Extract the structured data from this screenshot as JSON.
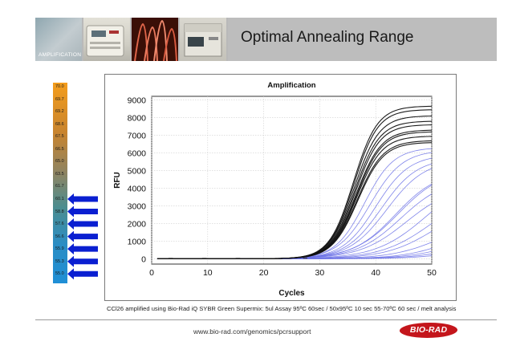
{
  "header": {
    "section_label": "AMPLIFICATION",
    "title": "Optimal Annealing Range"
  },
  "temperature_scale": {
    "labels": [
      "70.0",
      "69.7",
      "69.2",
      "68.6",
      "67.5",
      "66.5",
      "65.0",
      "63.5",
      "61.7",
      "60.1",
      "58.8",
      "57.6",
      "56.6",
      "55.9",
      "55.3",
      "55.0"
    ],
    "highlighted": [
      "60.1",
      "58.8",
      "57.6",
      "56.6",
      "55.9",
      "55.3",
      "55.0"
    ],
    "arrow_color": "#0a1fd1"
  },
  "chart_data": {
    "type": "line",
    "title": "Amplification",
    "xlabel": "Cycles",
    "ylabel": "RFU",
    "xlim": [
      0,
      50
    ],
    "ylim": [
      -300,
      9200
    ],
    "x_ticks": [
      0,
      10,
      20,
      30,
      40,
      50
    ],
    "y_ticks": [
      0,
      1000,
      2000,
      3000,
      4000,
      5000,
      6000,
      7000,
      8000,
      9000
    ],
    "grid": true,
    "series_colors": {
      "black": "#111111",
      "blue": "#6a70e6"
    },
    "series": [
      {
        "color": "black",
        "plateau": 8650,
        "midpoint": 36.0,
        "slope": 2.15
      },
      {
        "color": "black",
        "plateau": 8450,
        "midpoint": 36.1,
        "slope": 2.15
      },
      {
        "color": "black",
        "plateau": 8100,
        "midpoint": 36.2,
        "slope": 2.2
      },
      {
        "color": "black",
        "plateau": 7800,
        "midpoint": 36.3,
        "slope": 2.2
      },
      {
        "color": "black",
        "plateau": 7600,
        "midpoint": 36.4,
        "slope": 2.2
      },
      {
        "color": "black",
        "plateau": 7300,
        "midpoint": 36.5,
        "slope": 2.25
      },
      {
        "color": "black",
        "plateau": 7200,
        "midpoint": 36.6,
        "slope": 2.25
      },
      {
        "color": "black",
        "plateau": 6950,
        "midpoint": 36.6,
        "slope": 2.25
      },
      {
        "color": "black",
        "plateau": 6700,
        "midpoint": 36.7,
        "slope": 2.3
      },
      {
        "color": "black",
        "plateau": 6600,
        "midpoint": 36.8,
        "slope": 2.3
      },
      {
        "color": "blue",
        "plateau": 6300,
        "midpoint": 38.0,
        "slope": 2.6
      },
      {
        "color": "blue",
        "plateau": 6150,
        "midpoint": 39.0,
        "slope": 2.9
      },
      {
        "color": "blue",
        "plateau": 5900,
        "midpoint": 40.0,
        "slope": 3.0
      },
      {
        "color": "blue",
        "plateau": 5700,
        "midpoint": 41.0,
        "slope": 3.2
      },
      {
        "color": "blue",
        "plateau": 5600,
        "midpoint": 42.0,
        "slope": 3.4
      },
      {
        "color": "blue",
        "plateau": 5000,
        "midpoint": 43.5,
        "slope": 3.8
      },
      {
        "color": "blue",
        "plateau": 5100,
        "midpoint": 44.0,
        "slope": 4.0
      },
      {
        "color": "blue",
        "plateau": 4600,
        "midpoint": 44.5,
        "slope": 4.0
      },
      {
        "color": "blue",
        "plateau": 4200,
        "midpoint": 45.5,
        "slope": 4.2
      },
      {
        "color": "blue",
        "plateau": 4800,
        "midpoint": 49.0,
        "slope": 4.5
      },
      {
        "color": "blue",
        "plateau": 4000,
        "midpoint": 50.0,
        "slope": 4.5
      },
      {
        "color": "blue",
        "plateau": 3500,
        "midpoint": 51.0,
        "slope": 4.5
      },
      {
        "color": "blue",
        "plateau": 2400,
        "midpoint": 52.0,
        "slope": 4.5
      },
      {
        "color": "blue",
        "plateau": 2400,
        "midpoint": 55.0,
        "slope": 4.5
      },
      {
        "color": "blue",
        "plateau": 2000,
        "midpoint": 56.0,
        "slope": 4.5
      },
      {
        "color": "blue",
        "plateau": 1600,
        "midpoint": 57.0,
        "slope": 4.5
      },
      {
        "color": "blue",
        "plateau": 1200,
        "midpoint": 58.0,
        "slope": 4.5
      }
    ]
  },
  "caption": "CCl26 amplified using Bio-Rad iQ SYBR Green Supermix:  5ul Assay  95ºC 60sec / 50x95ºC 10 sec 55-70ºC 60 sec / melt analysis",
  "footer": {
    "url": "www.bio-rad.com/genomics/pcrsupport",
    "logo_text": "BIO-RAD"
  }
}
